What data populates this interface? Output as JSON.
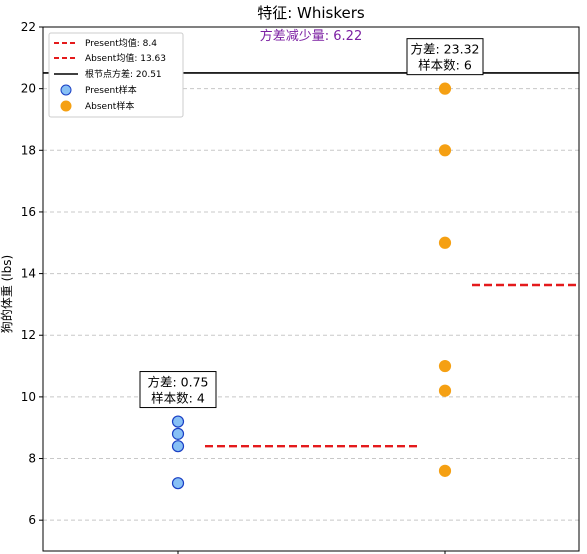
{
  "chart_data": {
    "type": "scatter",
    "title": "特征: Whiskers",
    "subtitle": "方差减少量: 6.22",
    "xlabel": "",
    "ylabel": "狗的体重 (lbs)",
    "ylim": [
      5,
      22
    ],
    "yticks": [
      6,
      8,
      10,
      12,
      14,
      16,
      18,
      20,
      22
    ],
    "grid": true,
    "legend_position": "top-left",
    "groups": [
      {
        "name": "Present样本",
        "x": 0,
        "values": [
          7.2,
          8.4,
          8.8,
          9.2
        ],
        "color": "#87c0f5",
        "edge": "#1a3fc4",
        "mean": 8.4,
        "mean_label": "Present均值: 8.4",
        "variance_label": "方差: 0.75",
        "count_label": "样本数: 4"
      },
      {
        "name": "Absent样本",
        "x": 1,
        "values": [
          7.6,
          10.2,
          11.0,
          15.0,
          18.0,
          20.0
        ],
        "color": "#f5a013",
        "edge": "#f5a013",
        "mean": 13.63,
        "mean_label": "Absent均值: 13.63",
        "variance_label": "方差: 23.32",
        "count_label": "样本数: 6"
      }
    ],
    "root_variance": 20.51,
    "root_label": "根节点方差: 20.51",
    "mean_line_color": "#e41a1c",
    "root_line_color": "#000000"
  }
}
